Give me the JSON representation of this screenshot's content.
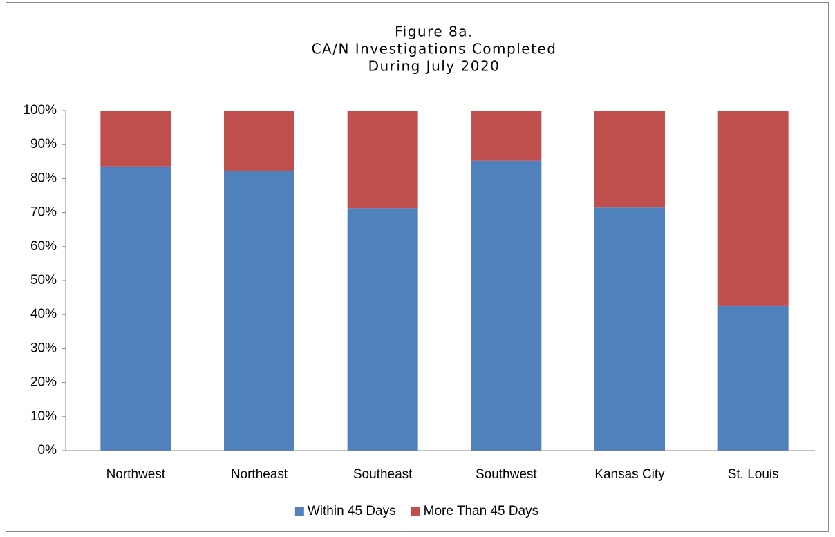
{
  "chart_data": {
    "type": "stacked_bar",
    "title": [
      "Figure 8a.",
      "CA/N Investigations Completed",
      "During July 2020"
    ],
    "categories": [
      "Northwest",
      "Northeast",
      "Southeast",
      "Southwest",
      "Kansas City",
      "St. Louis"
    ],
    "series": [
      {
        "name": "Within 45 Days",
        "color": "#4f81bd",
        "values": [
          83.6,
          82.2,
          71.3,
          85.2,
          71.5,
          42.5
        ]
      },
      {
        "name": "More Than 45 Days",
        "color": "#c0504d",
        "values": [
          16.4,
          17.8,
          28.7,
          14.8,
          28.5,
          57.5
        ]
      }
    ],
    "ylim": [
      0,
      100
    ],
    "yticks": [
      {
        "value": 0,
        "label": "0%"
      },
      {
        "value": 10,
        "label": "10%"
      },
      {
        "value": 20,
        "label": "20%"
      },
      {
        "value": 30,
        "label": "30%"
      },
      {
        "value": 40,
        "label": "40%"
      },
      {
        "value": 50,
        "label": "50%"
      },
      {
        "value": 60,
        "label": "60%"
      },
      {
        "value": 70,
        "label": "70%"
      },
      {
        "value": 80,
        "label": "80%"
      },
      {
        "value": 90,
        "label": "90%"
      },
      {
        "value": 100,
        "label": "100%"
      }
    ],
    "grid": false,
    "legend": "bottom"
  }
}
